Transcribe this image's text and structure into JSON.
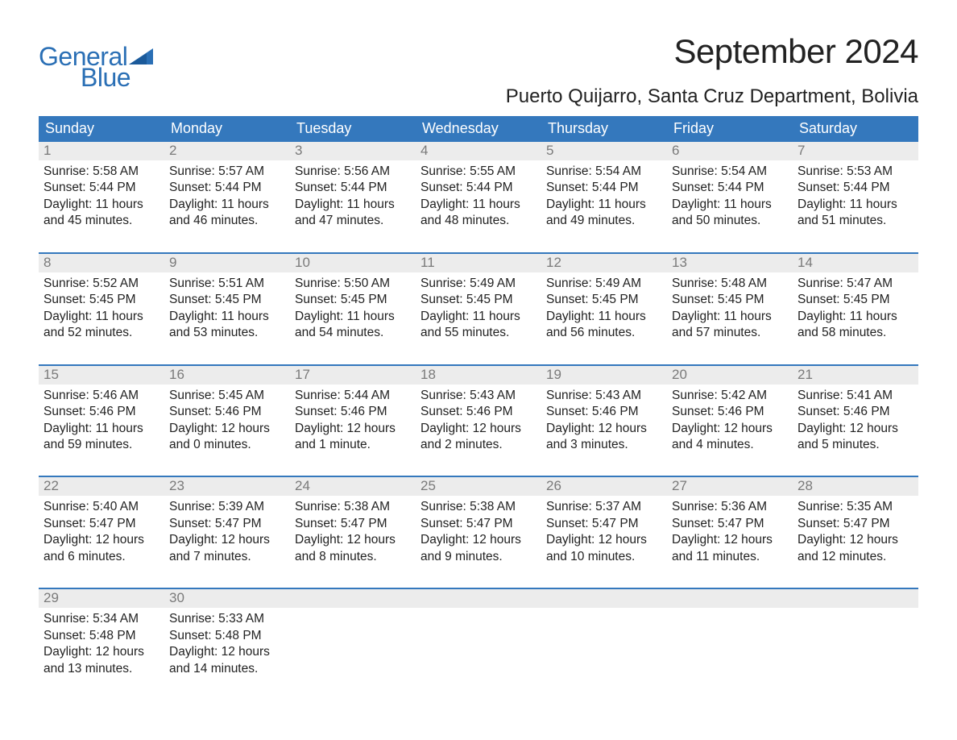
{
  "brand": {
    "general": "General",
    "blue": "Blue"
  },
  "title": "September 2024",
  "location": "Puerto Quijarro, Santa Cruz Department, Bolivia",
  "colors": {
    "header_bg": "#3478bd",
    "header_text": "#ffffff",
    "daynum_bg": "#ececec",
    "daynum_text": "#7a7a7a",
    "body_text": "#222222",
    "brand_color": "#2a6fb5",
    "week_border": "#3478bd"
  },
  "typography": {
    "title_fontsize": 42,
    "location_fontsize": 24,
    "header_fontsize": 18,
    "cell_fontsize": 15.5,
    "logo_fontsize": 32
  },
  "day_names": [
    "Sunday",
    "Monday",
    "Tuesday",
    "Wednesday",
    "Thursday",
    "Friday",
    "Saturday"
  ],
  "weeks": [
    {
      "nums": [
        "1",
        "2",
        "3",
        "4",
        "5",
        "6",
        "7"
      ],
      "cells": [
        {
          "sunrise": "Sunrise: 5:58 AM",
          "sunset": "Sunset: 5:44 PM",
          "d1": "Daylight: 11 hours",
          "d2": "and 45 minutes."
        },
        {
          "sunrise": "Sunrise: 5:57 AM",
          "sunset": "Sunset: 5:44 PM",
          "d1": "Daylight: 11 hours",
          "d2": "and 46 minutes."
        },
        {
          "sunrise": "Sunrise: 5:56 AM",
          "sunset": "Sunset: 5:44 PM",
          "d1": "Daylight: 11 hours",
          "d2": "and 47 minutes."
        },
        {
          "sunrise": "Sunrise: 5:55 AM",
          "sunset": "Sunset: 5:44 PM",
          "d1": "Daylight: 11 hours",
          "d2": "and 48 minutes."
        },
        {
          "sunrise": "Sunrise: 5:54 AM",
          "sunset": "Sunset: 5:44 PM",
          "d1": "Daylight: 11 hours",
          "d2": "and 49 minutes."
        },
        {
          "sunrise": "Sunrise: 5:54 AM",
          "sunset": "Sunset: 5:44 PM",
          "d1": "Daylight: 11 hours",
          "d2": "and 50 minutes."
        },
        {
          "sunrise": "Sunrise: 5:53 AM",
          "sunset": "Sunset: 5:44 PM",
          "d1": "Daylight: 11 hours",
          "d2": "and 51 minutes."
        }
      ]
    },
    {
      "nums": [
        "8",
        "9",
        "10",
        "11",
        "12",
        "13",
        "14"
      ],
      "cells": [
        {
          "sunrise": "Sunrise: 5:52 AM",
          "sunset": "Sunset: 5:45 PM",
          "d1": "Daylight: 11 hours",
          "d2": "and 52 minutes."
        },
        {
          "sunrise": "Sunrise: 5:51 AM",
          "sunset": "Sunset: 5:45 PM",
          "d1": "Daylight: 11 hours",
          "d2": "and 53 minutes."
        },
        {
          "sunrise": "Sunrise: 5:50 AM",
          "sunset": "Sunset: 5:45 PM",
          "d1": "Daylight: 11 hours",
          "d2": "and 54 minutes."
        },
        {
          "sunrise": "Sunrise: 5:49 AM",
          "sunset": "Sunset: 5:45 PM",
          "d1": "Daylight: 11 hours",
          "d2": "and 55 minutes."
        },
        {
          "sunrise": "Sunrise: 5:49 AM",
          "sunset": "Sunset: 5:45 PM",
          "d1": "Daylight: 11 hours",
          "d2": "and 56 minutes."
        },
        {
          "sunrise": "Sunrise: 5:48 AM",
          "sunset": "Sunset: 5:45 PM",
          "d1": "Daylight: 11 hours",
          "d2": "and 57 minutes."
        },
        {
          "sunrise": "Sunrise: 5:47 AM",
          "sunset": "Sunset: 5:45 PM",
          "d1": "Daylight: 11 hours",
          "d2": "and 58 minutes."
        }
      ]
    },
    {
      "nums": [
        "15",
        "16",
        "17",
        "18",
        "19",
        "20",
        "21"
      ],
      "cells": [
        {
          "sunrise": "Sunrise: 5:46 AM",
          "sunset": "Sunset: 5:46 PM",
          "d1": "Daylight: 11 hours",
          "d2": "and 59 minutes."
        },
        {
          "sunrise": "Sunrise: 5:45 AM",
          "sunset": "Sunset: 5:46 PM",
          "d1": "Daylight: 12 hours",
          "d2": "and 0 minutes."
        },
        {
          "sunrise": "Sunrise: 5:44 AM",
          "sunset": "Sunset: 5:46 PM",
          "d1": "Daylight: 12 hours",
          "d2": "and 1 minute."
        },
        {
          "sunrise": "Sunrise: 5:43 AM",
          "sunset": "Sunset: 5:46 PM",
          "d1": "Daylight: 12 hours",
          "d2": "and 2 minutes."
        },
        {
          "sunrise": "Sunrise: 5:43 AM",
          "sunset": "Sunset: 5:46 PM",
          "d1": "Daylight: 12 hours",
          "d2": "and 3 minutes."
        },
        {
          "sunrise": "Sunrise: 5:42 AM",
          "sunset": "Sunset: 5:46 PM",
          "d1": "Daylight: 12 hours",
          "d2": "and 4 minutes."
        },
        {
          "sunrise": "Sunrise: 5:41 AM",
          "sunset": "Sunset: 5:46 PM",
          "d1": "Daylight: 12 hours",
          "d2": "and 5 minutes."
        }
      ]
    },
    {
      "nums": [
        "22",
        "23",
        "24",
        "25",
        "26",
        "27",
        "28"
      ],
      "cells": [
        {
          "sunrise": "Sunrise: 5:40 AM",
          "sunset": "Sunset: 5:47 PM",
          "d1": "Daylight: 12 hours",
          "d2": "and 6 minutes."
        },
        {
          "sunrise": "Sunrise: 5:39 AM",
          "sunset": "Sunset: 5:47 PM",
          "d1": "Daylight: 12 hours",
          "d2": "and 7 minutes."
        },
        {
          "sunrise": "Sunrise: 5:38 AM",
          "sunset": "Sunset: 5:47 PM",
          "d1": "Daylight: 12 hours",
          "d2": "and 8 minutes."
        },
        {
          "sunrise": "Sunrise: 5:38 AM",
          "sunset": "Sunset: 5:47 PM",
          "d1": "Daylight: 12 hours",
          "d2": "and 9 minutes."
        },
        {
          "sunrise": "Sunrise: 5:37 AM",
          "sunset": "Sunset: 5:47 PM",
          "d1": "Daylight: 12 hours",
          "d2": "and 10 minutes."
        },
        {
          "sunrise": "Sunrise: 5:36 AM",
          "sunset": "Sunset: 5:47 PM",
          "d1": "Daylight: 12 hours",
          "d2": "and 11 minutes."
        },
        {
          "sunrise": "Sunrise: 5:35 AM",
          "sunset": "Sunset: 5:47 PM",
          "d1": "Daylight: 12 hours",
          "d2": "and 12 minutes."
        }
      ]
    },
    {
      "nums": [
        "29",
        "30",
        "",
        "",
        "",
        "",
        ""
      ],
      "cells": [
        {
          "sunrise": "Sunrise: 5:34 AM",
          "sunset": "Sunset: 5:48 PM",
          "d1": "Daylight: 12 hours",
          "d2": "and 13 minutes."
        },
        {
          "sunrise": "Sunrise: 5:33 AM",
          "sunset": "Sunset: 5:48 PM",
          "d1": "Daylight: 12 hours",
          "d2": "and 14 minutes."
        },
        null,
        null,
        null,
        null,
        null
      ]
    }
  ]
}
